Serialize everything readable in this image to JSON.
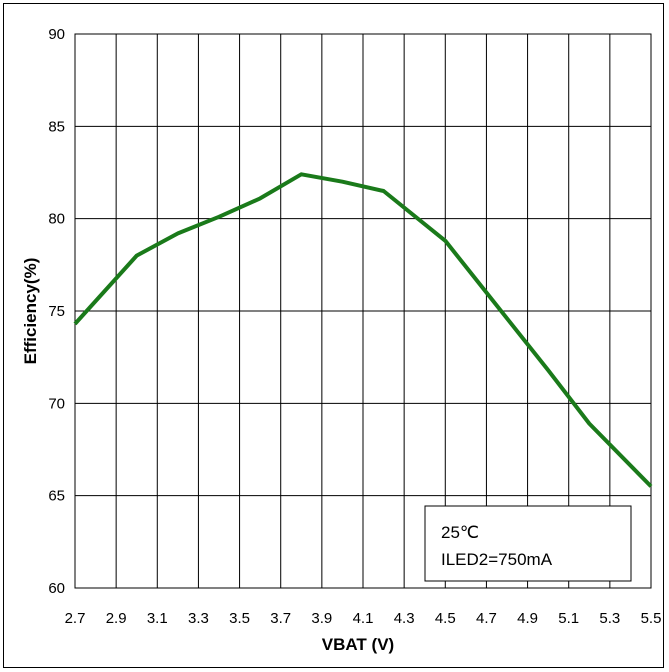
{
  "chart_data": {
    "type": "line",
    "title": "",
    "xlabel": "VBAT (V)",
    "ylabel": "Efficiency(%)",
    "xlim": [
      2.7,
      5.5
    ],
    "ylim": [
      60,
      90
    ],
    "x_ticks": [
      2.7,
      2.9,
      3.1,
      3.3,
      3.5,
      3.7,
      3.9,
      4.1,
      4.3,
      4.5,
      4.7,
      4.9,
      5.1,
      5.3,
      5.5
    ],
    "x_tick_labels": [
      "2.7",
      "2.9",
      "3.1",
      "3.3",
      "3.5",
      "3.7",
      "3.9",
      "4.1",
      "4.3",
      "4.5",
      "4.7",
      "4.9",
      "5.1",
      "5.3",
      "5.5"
    ],
    "y_ticks": [
      60,
      65,
      70,
      75,
      80,
      85,
      90
    ],
    "y_tick_labels": [
      "60",
      "65",
      "70",
      "75",
      "80",
      "85",
      "90"
    ],
    "grid": true,
    "series": [
      {
        "color": "#1a7a1a",
        "x": [
          2.7,
          3.0,
          3.2,
          3.4,
          3.6,
          3.8,
          4.0,
          4.2,
          4.5,
          4.7,
          5.0,
          5.2,
          5.5
        ],
        "y": [
          74.3,
          78.0,
          79.2,
          80.1,
          81.1,
          82.4,
          82.0,
          81.5,
          78.8,
          76.0,
          71.8,
          68.9,
          65.5
        ]
      }
    ],
    "annotations": [
      "25℃",
      "ILED2=750mA"
    ],
    "legend_position": "bottom-right"
  }
}
